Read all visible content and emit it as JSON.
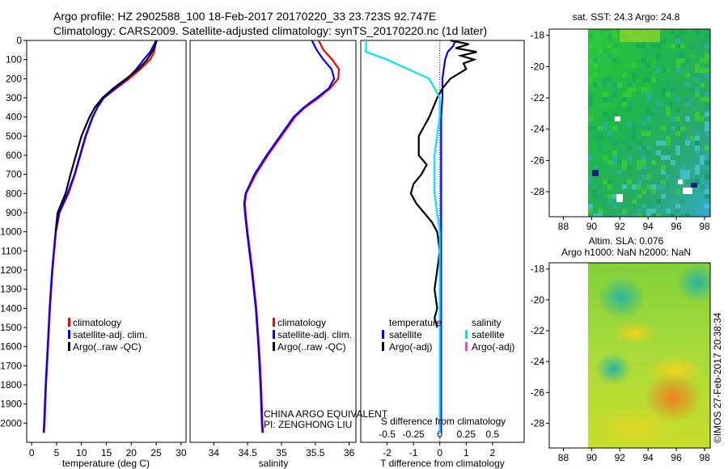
{
  "header": {
    "line1": "Argo profile: HZ 2902588_100 18-Feb-2017 20170220_33 23.723S 92.747E",
    "line2": "Climatology: CARS2009. Satellite-adjusted climatology: synTS_20170220.nc (1d later)"
  },
  "colors": {
    "climatology": "#ff0000",
    "satellite": "#0000ff",
    "argo": "#000000",
    "sal_sat": "#00e5ee",
    "sal_argo": "#ff33ff"
  },
  "chart_data": [
    {
      "type": "line",
      "id": "temp",
      "xlabel": "temperature (deg C)",
      "xlim": [
        -1,
        31
      ],
      "ylim": [
        2100,
        0
      ],
      "xticks": [
        0,
        5,
        10,
        15,
        20,
        25,
        30
      ],
      "yticks": [
        0,
        100,
        200,
        300,
        400,
        500,
        600,
        700,
        800,
        900,
        1000,
        1100,
        1200,
        1300,
        1400,
        1500,
        1600,
        1700,
        1800,
        1900,
        2000
      ],
      "legend": [
        "climatology",
        "satellite-adj. clim.",
        "Argo(..raw -QC)"
      ],
      "series": [
        {
          "name": "climatology",
          "depth": [
            0,
            30,
            60,
            100,
            150,
            200,
            250,
            300,
            350,
            400,
            500,
            600,
            700,
            800,
            900,
            1000,
            1200,
            1400,
            1600,
            1800,
            2000,
            2050
          ],
          "values": [
            24.9,
            24.8,
            24.6,
            23.8,
            21.8,
            19.6,
            17.0,
            14.5,
            13.2,
            12.3,
            10.9,
            9.8,
            8.7,
            7.4,
            5.6,
            4.9,
            4.2,
            3.7,
            3.3,
            2.9,
            2.6,
            2.5
          ]
        },
        {
          "name": "satellite",
          "depth": [
            0,
            30,
            60,
            100,
            150,
            200,
            250,
            300,
            350,
            400,
            500,
            600,
            700,
            800,
            900,
            1000,
            1200,
            1400,
            1600,
            1800,
            2000,
            2050
          ],
          "values": [
            25.0,
            24.4,
            23.8,
            22.5,
            21.0,
            19.2,
            16.8,
            14.5,
            13.2,
            12.2,
            10.8,
            9.7,
            8.6,
            7.2,
            5.5,
            4.8,
            4.1,
            3.6,
            3.2,
            2.8,
            2.5,
            2.4
          ]
        },
        {
          "name": "Argo",
          "depth": [
            0,
            20,
            50,
            100,
            150,
            200,
            250,
            300,
            350,
            400,
            500,
            600,
            700,
            800,
            900,
            1000
          ],
          "values": [
            25.1,
            24.9,
            24.4,
            23.2,
            21.4,
            19.0,
            16.4,
            14.2,
            12.7,
            11.6,
            10.0,
            8.9,
            7.8,
            6.8,
            5.2,
            4.8
          ]
        }
      ]
    },
    {
      "type": "line",
      "id": "sal",
      "xlabel": "salinity",
      "xlim": [
        33.65,
        36.1
      ],
      "ylim": [
        2100,
        0
      ],
      "xticks": [
        34,
        34.5,
        35,
        35.5,
        36
      ],
      "legend": [
        "climatology",
        "satellite-adj. clim.",
        "Argo(..raw -QC)"
      ],
      "annotation": [
        "CHINA ARGO EQUIVALENT",
        "PI: ZENGHONG LIU"
      ],
      "series": [
        {
          "name": "climatology",
          "depth": [
            0,
            50,
            100,
            150,
            200,
            250,
            300,
            350,
            400,
            500,
            600,
            700,
            800,
            850,
            900,
            1000,
            1200,
            1400,
            1600,
            1800,
            2000,
            2050
          ],
          "values": [
            35.55,
            35.62,
            35.75,
            35.85,
            35.84,
            35.72,
            35.55,
            35.35,
            35.2,
            35.0,
            34.8,
            34.62,
            34.48,
            34.46,
            34.47,
            34.5,
            34.57,
            34.63,
            34.67,
            34.7,
            34.72,
            34.73
          ]
        },
        {
          "name": "satellite",
          "depth": [
            0,
            50,
            100,
            150,
            200,
            250,
            300,
            350,
            400,
            500,
            600,
            700,
            800,
            850,
            900,
            1000,
            1200,
            1400,
            1600,
            1800,
            2000,
            2050
          ],
          "values": [
            35.45,
            35.52,
            35.62,
            35.74,
            35.78,
            35.7,
            35.52,
            35.33,
            35.18,
            34.98,
            34.78,
            34.6,
            34.47,
            34.45,
            34.46,
            34.49,
            34.56,
            34.62,
            34.66,
            34.69,
            34.71,
            34.72
          ]
        }
      ]
    },
    {
      "type": "line",
      "id": "diff",
      "xlabel": "T difference from climatology",
      "xlabel_top": "S difference from climatology",
      "xlim": [
        -3.0,
        3.2
      ],
      "ylim": [
        2100,
        0
      ],
      "xticks": [
        -2,
        -1,
        0,
        1,
        2
      ],
      "xticks_top": [
        "-0.5",
        "-0.25",
        "0",
        "0.25",
        "0.5"
      ],
      "legend_titles": [
        "temperature",
        "salinity"
      ],
      "legend": [
        "satellite",
        "Argo(-adj)",
        "satellite",
        "Argo(-adj)"
      ],
      "series": [
        {
          "name": "T satellite",
          "depth": [
            0,
            30,
            60,
            100,
            150,
            200,
            300,
            400,
            600,
            800,
            1000,
            1200,
            1400,
            1600,
            1800,
            2000,
            2050
          ],
          "values": [
            0.6,
            0.5,
            0.3,
            0.2,
            0.15,
            0.1,
            0.1,
            0.05,
            0.05,
            0.05,
            0.05,
            0.05,
            0.05,
            0.05,
            0.05,
            0.05,
            0.05
          ]
        },
        {
          "name": "T Argo",
          "depth": [
            0,
            20,
            40,
            60,
            80,
            100,
            120,
            150,
            200,
            250,
            300,
            400,
            450,
            500,
            600,
            650,
            700,
            750,
            800,
            850,
            900,
            950,
            1000,
            1100,
            1200,
            1300,
            1400,
            1450,
            1500
          ],
          "values": [
            0.4,
            1.1,
            0.6,
            1.4,
            0.8,
            1.3,
            0.9,
            1.0,
            0.4,
            0.1,
            -0.1,
            -0.4,
            -0.6,
            -0.8,
            -0.8,
            -0.5,
            -0.7,
            -1.0,
            -1.1,
            -0.9,
            -0.6,
            -0.3,
            -0.1,
            0.0,
            -0.1,
            -0.2,
            -0.1,
            -0.2,
            -0.1
          ]
        },
        {
          "name": "S satellite",
          "depth": [
            0,
            60,
            100,
            150,
            200,
            250,
            300,
            400,
            600,
            800,
            1000,
            1200,
            1400,
            1600,
            1800,
            2000,
            2050
          ],
          "values": [
            -0.7,
            -0.7,
            -0.5,
            -0.3,
            -0.1,
            -0.05,
            0.0,
            0.0,
            -0.05,
            -0.05,
            0.0,
            0.0,
            0.0,
            0.0,
            0.0,
            0.0,
            0.0
          ]
        }
      ]
    },
    {
      "type": "heatmap",
      "id": "sst",
      "title": "sat. SST: 24.3 Argo: 24.8",
      "xlim": [
        87,
        98.4
      ],
      "ylim": [
        -29.6,
        -17.6
      ],
      "xticks": [
        88,
        90,
        92,
        94,
        96,
        98
      ],
      "yticks": [
        -18,
        -20,
        -22,
        -24,
        -26,
        -28
      ]
    },
    {
      "type": "heatmap",
      "id": "sla",
      "title1": "Altim. SLA: 0.076",
      "title2": "Argo h1000: NaN h2000: NaN",
      "xlim": [
        87,
        98.4
      ],
      "ylim": [
        -29.6,
        -17.6
      ],
      "xticks": [
        88,
        90,
        92,
        94,
        96,
        98
      ],
      "yticks": [
        -18,
        -20,
        -22,
        -24,
        -26,
        -28
      ]
    }
  ],
  "footer": {
    "stamp": "©IMOS 27-Feb-2017 20:38:34"
  }
}
